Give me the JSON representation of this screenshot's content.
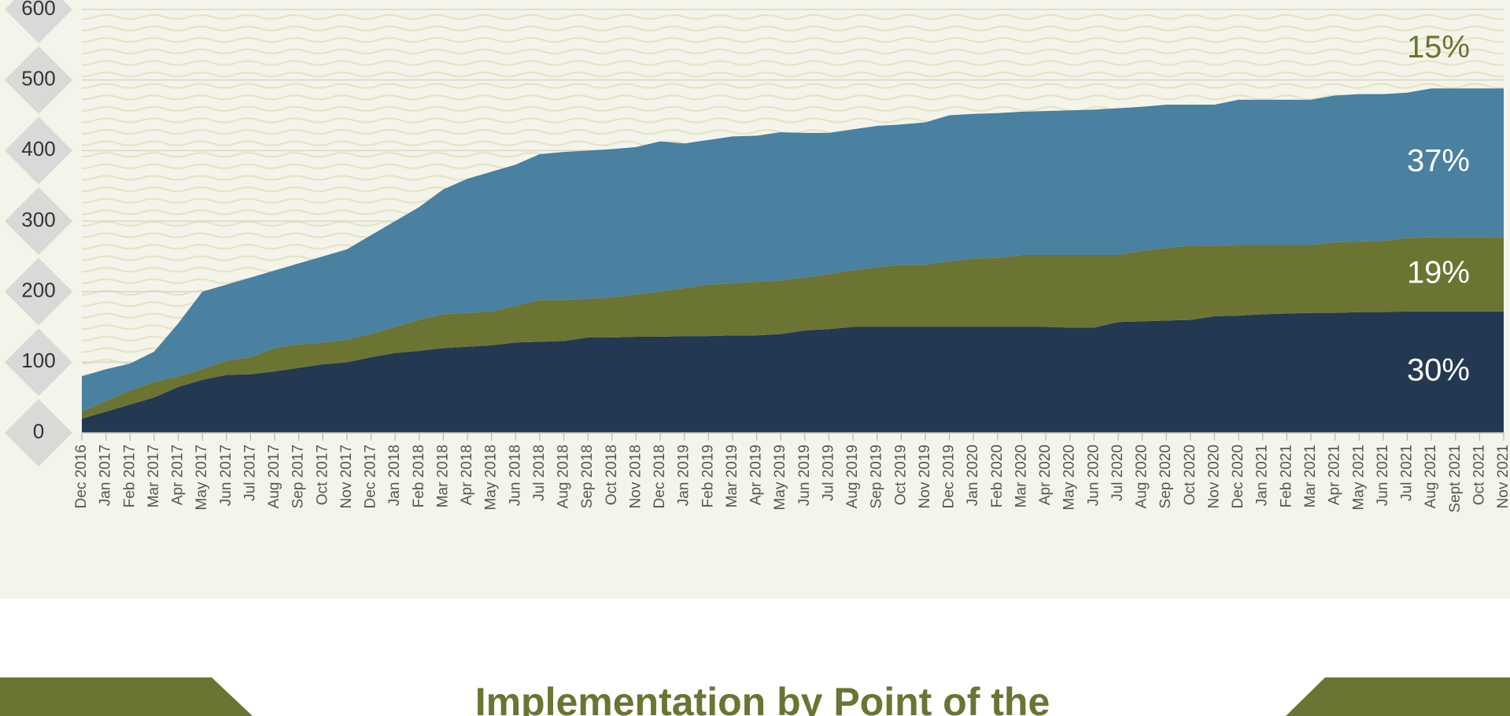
{
  "chart_data": {
    "type": "stacked_area",
    "categories": [
      "Dec 2016",
      "Jan 2017",
      "Feb 2017",
      "Mar 2017",
      "Apr 2017",
      "May 2017",
      "Jun 2017",
      "Jul 2017",
      "Aug 2017",
      "Sep 2017",
      "Oct 2017",
      "Nov 2017",
      "Dec 2017",
      "Jan 2018",
      "Feb 2018",
      "Mar 2018",
      "Apr 2018",
      "May 2018",
      "Jun 2018",
      "Jul 2018",
      "Aug 2018",
      "Sep 2018",
      "Oct 2018",
      "Nov 2018",
      "Dec 2018",
      "Jan 2019",
      "Feb 2019",
      "Mar 2019",
      "Apr 2019",
      "May 2019",
      "Jun 2019",
      "Jul 2019",
      "Aug 2019",
      "Sep 2019",
      "Oct 2019",
      "Nov 2019",
      "Dec 2019",
      "Jan 2020",
      "Feb 2020",
      "Mar 2020",
      "Apr 2020",
      "May 2020",
      "Jun 2020",
      "Jul 2020",
      "Aug 2020",
      "Sep 2020",
      "Oct 2020",
      "Nov 2020",
      "Dec 2020",
      "Jan 2021",
      "Feb 2021",
      "Mar 2021",
      "Apr 2021",
      "May 2021",
      "Jun 2021",
      "Jul 2021",
      "Aug 2021",
      "Sept 2021",
      "Oct 2021",
      "Nov 2021"
    ],
    "series": [
      {
        "color": "#243851",
        "values": [
          20,
          30,
          40,
          50,
          65,
          75,
          82,
          83,
          87,
          92,
          97,
          100,
          107,
          113,
          116,
          120,
          122,
          124,
          128,
          129,
          130,
          135,
          135,
          136,
          136,
          137,
          137,
          138,
          138,
          140,
          145,
          147,
          150,
          150,
          150,
          150,
          150,
          150,
          150,
          150,
          150,
          149,
          149,
          157,
          158,
          159,
          160,
          165,
          166,
          168,
          169,
          170,
          170,
          171,
          171,
          172,
          172,
          172,
          172,
          172
        ]
      },
      {
        "color": "#6b7432",
        "values": [
          10,
          15,
          20,
          22,
          15,
          15,
          20,
          24,
          33,
          33,
          31,
          32,
          33,
          37,
          44,
          48,
          48,
          48,
          52,
          59,
          58,
          55,
          57,
          60,
          64,
          68,
          73,
          74,
          76,
          76,
          75,
          78,
          80,
          85,
          88,
          88,
          93,
          97,
          98,
          102,
          102,
          103,
          103,
          95,
          100,
          103,
          105,
          100,
          100,
          98,
          97,
          96,
          100,
          100,
          101,
          104,
          105,
          105,
          105,
          105
        ]
      },
      {
        "color": "#4a80a0",
        "values": [
          50,
          45,
          38,
          43,
          75,
          110,
          108,
          113,
          110,
          115,
          122,
          128,
          140,
          150,
          160,
          177,
          190,
          198,
          200,
          207,
          210,
          210,
          210,
          209,
          213,
          205,
          205,
          208,
          207,
          210,
          205,
          200,
          200,
          200,
          199,
          202,
          207,
          205,
          205,
          203,
          204,
          205,
          206,
          208,
          204,
          203,
          200,
          200,
          206,
          206,
          206,
          206,
          208,
          209,
          208,
          206,
          211,
          211,
          211,
          211
        ]
      }
    ],
    "area_labels": [
      {
        "text": "30%",
        "color": "#ffffff"
      },
      {
        "text": "19%",
        "color": "#ffffff"
      },
      {
        "text": "37%",
        "color": "#ffffff"
      },
      {
        "text": "15%",
        "color": "#6b7432"
      }
    ],
    "ylim": [
      0,
      600
    ],
    "yticks": [
      0,
      100,
      200,
      300,
      400,
      500,
      600
    ],
    "grid": true
  },
  "section_title": "Implementation by Point of the"
}
